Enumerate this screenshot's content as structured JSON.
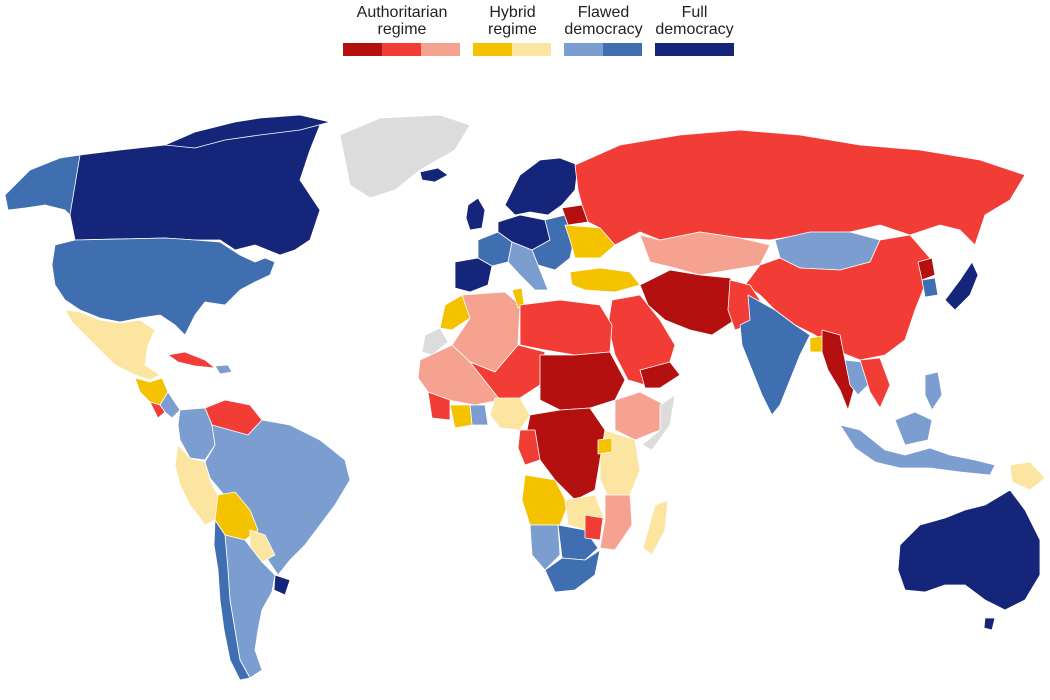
{
  "legend": {
    "groups": [
      {
        "label": "Authoritarian\nregime",
        "colors": [
          "#b3100f",
          "#f23d37",
          "#f5a291"
        ]
      },
      {
        "label": "Hybrid\nregime",
        "colors": [
          "#f5c200",
          "#fbe5a0"
        ]
      },
      {
        "label": "Flawed\ndemocracy",
        "colors": [
          "#7b9dd0",
          "#3f6fb0"
        ]
      },
      {
        "label": "Full\ndemocracy",
        "colors": [
          "#15267a"
        ]
      }
    ]
  },
  "colors": {
    "authoritarian_dark": "#b3100f",
    "authoritarian": "#f23d37",
    "authoritarian_light": "#f5a291",
    "hybrid": "#f5c200",
    "hybrid_light": "#fbe5a0",
    "flawed_light": "#7b9dd0",
    "flawed": "#3f6fb0",
    "full": "#15267a",
    "no_data": "#dcdcdc"
  }
}
